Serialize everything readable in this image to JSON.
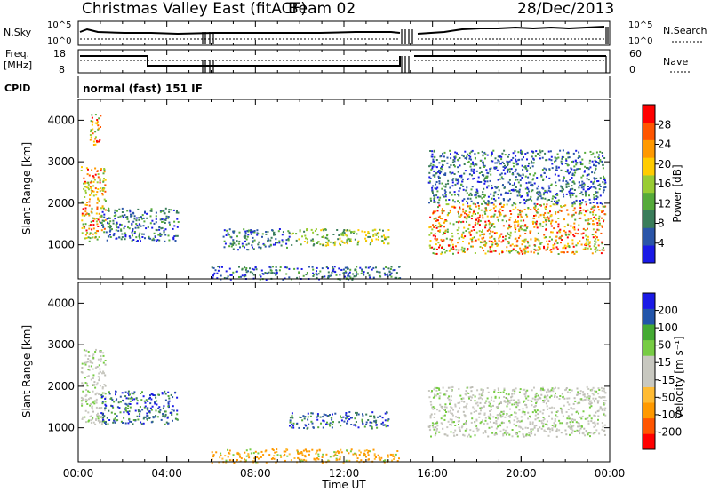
{
  "header": {
    "station": "Christmas Valley East (fitACF)",
    "beam": "Beam 02",
    "date": "28/Dec/2013"
  },
  "top_panels": {
    "nsky_label": "N.Sky",
    "nsky_ticks": [
      "10^5",
      "10^0"
    ],
    "nsearch_label": "N.Search",
    "nsearch_ticks": [
      "10^5",
      "10^0"
    ],
    "freq_label_1": "Freq.",
    "freq_label_2": "[MHz]",
    "freq_ticks": [
      "18",
      "8"
    ],
    "nave_label": "Nave",
    "nave_ticks": [
      "60",
      "0"
    ],
    "cpid_label": "CPID",
    "cpid_value": "normal (fast) 151 IF"
  },
  "colors": {
    "power_scale": [
      "#1a1ae6",
      "#2a55a8",
      "#3a7d5a",
      "#55aa3a",
      "#99cc33",
      "#ffcc00",
      "#ff9900",
      "#ff5500",
      "#ff0000"
    ],
    "velocity_scale": [
      "#ff0000",
      "#ff5500",
      "#ff9900",
      "#ffbb33",
      "#c8c8c0",
      "#c8c8c0",
      "#77cc44",
      "#44aa33",
      "#2255aa",
      "#1a1ae6"
    ]
  },
  "chart_data": [
    {
      "type": "heatmap",
      "panel": "power",
      "ylabel": "Slant Range [km]",
      "yticks": [
        "4000",
        "3000",
        "2000",
        "1000"
      ],
      "ylim": [
        180,
        4500
      ],
      "colorbar_label": "Power [dB]",
      "colorbar_ticks": [
        "28",
        "24",
        "20",
        "16",
        "12",
        "8",
        "4"
      ],
      "clim": [
        0,
        32
      ],
      "echo_regions": [
        {
          "t": [
            0.1,
            1.2
          ],
          "r": [
            1100,
            2900
          ],
          "level": "high"
        },
        {
          "t": [
            0.5,
            1.0
          ],
          "r": [
            3400,
            4200
          ],
          "level": "high"
        },
        {
          "t": [
            1.0,
            4.5
          ],
          "r": [
            1100,
            1900
          ],
          "level": "low"
        },
        {
          "t": [
            6.0,
            14.5
          ],
          "r": [
            180,
            500
          ],
          "level": "low"
        },
        {
          "t": [
            6.5,
            9.5
          ],
          "r": [
            900,
            1400
          ],
          "level": "low"
        },
        {
          "t": [
            9.5,
            14.0
          ],
          "r": [
            1000,
            1400
          ],
          "level": "mid"
        },
        {
          "t": [
            15.8,
            23.8
          ],
          "r": [
            800,
            2000
          ],
          "level": "high"
        },
        {
          "t": [
            15.8,
            23.8
          ],
          "r": [
            2000,
            3300
          ],
          "level": "low"
        }
      ]
    },
    {
      "type": "heatmap",
      "panel": "velocity",
      "ylabel": "Slant Range [km]",
      "yticks": [
        "4000",
        "3000",
        "2000",
        "1000"
      ],
      "ylim": [
        180,
        4500
      ],
      "xlabel": "Time UT",
      "xticks": [
        "00:00",
        "04:00",
        "08:00",
        "12:00",
        "16:00",
        "20:00",
        "00:00"
      ],
      "xlim": [
        0,
        24
      ],
      "colorbar_label": "Velocity [m s⁻¹]",
      "colorbar_ticks": [
        "200",
        "100",
        "50",
        "15",
        "-15",
        "-50",
        "-100",
        "-200"
      ],
      "clim": [
        -250,
        250
      ],
      "echo_regions": [
        {
          "t": [
            0.1,
            1.2
          ],
          "r": [
            1100,
            2900
          ],
          "level": "ground"
        },
        {
          "t": [
            1.0,
            4.5
          ],
          "r": [
            1100,
            1900
          ],
          "level": "low"
        },
        {
          "t": [
            6.0,
            14.5
          ],
          "r": [
            180,
            500
          ],
          "level": "neg"
        },
        {
          "t": [
            9.5,
            14.0
          ],
          "r": [
            1000,
            1400
          ],
          "level": "low"
        },
        {
          "t": [
            15.8,
            23.8
          ],
          "r": [
            800,
            2000
          ],
          "level": "ground"
        }
      ]
    }
  ]
}
